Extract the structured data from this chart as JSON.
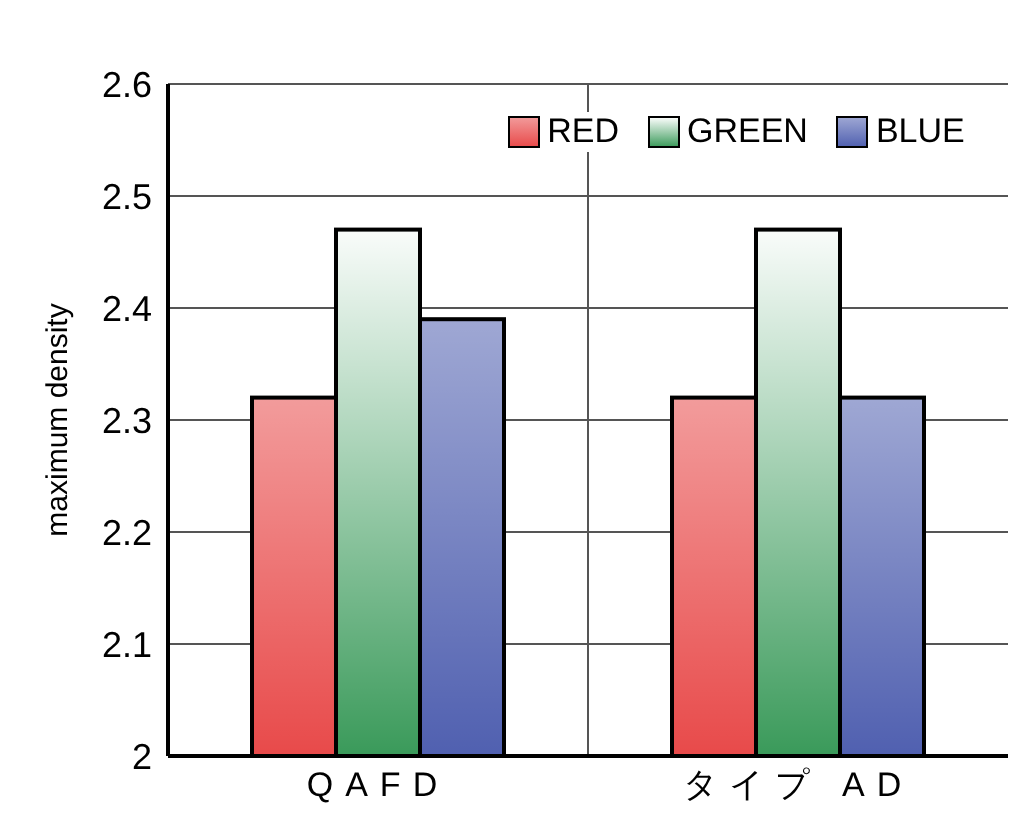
{
  "chart_data": {
    "type": "bar",
    "ylabel": "maximum density",
    "categories": [
      "QAFD",
      "タイプ AD"
    ],
    "series": [
      {
        "name": "RED",
        "color": "#e84a4a",
        "values": [
          2.32,
          2.32
        ]
      },
      {
        "name": "GREEN",
        "color": "#3a9a5a",
        "values": [
          2.47,
          2.47
        ]
      },
      {
        "name": "BLUE",
        "color": "#5060b0",
        "values": [
          2.39,
          2.32
        ]
      }
    ],
    "ylim": [
      2,
      2.6
    ],
    "yticks": [
      2,
      2.1,
      2.2,
      2.3,
      2.4,
      2.5,
      2.6
    ],
    "grid": true,
    "legend": "top"
  }
}
